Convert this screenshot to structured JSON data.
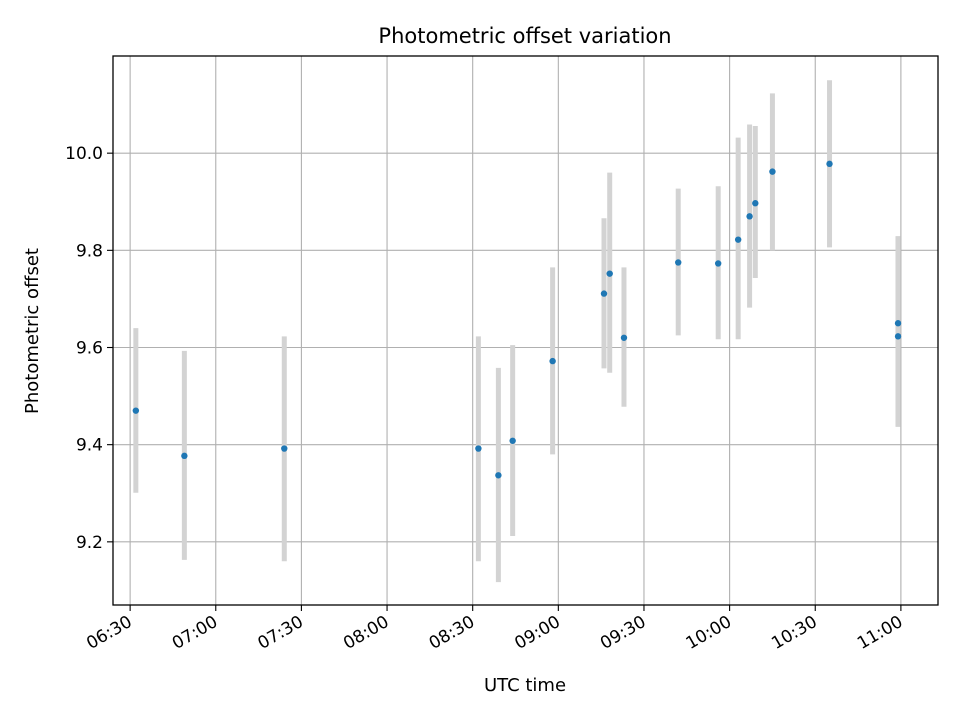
{
  "chart_data": {
    "type": "scatter",
    "title": "Photometric offset variation",
    "xlabel": "UTC time",
    "ylabel": "Photometric offset",
    "x_ticks": [
      "06:30",
      "07:00",
      "07:30",
      "08:00",
      "08:30",
      "09:00",
      "09:30",
      "10:00",
      "10:30",
      "11:00"
    ],
    "y_ticks": [
      "9.2",
      "9.4",
      "9.6",
      "9.8",
      "10.0"
    ],
    "xlim": [
      "06:24",
      "11:13"
    ],
    "ylim": [
      9.07,
      10.2
    ],
    "grid": true,
    "colors": {
      "points": "#1f77b4",
      "errorbars": "#d3d3d3",
      "grid": "#b0b0b0"
    },
    "series": [
      {
        "x": [
          "06:32",
          "06:49",
          "07:24",
          "08:32",
          "08:39",
          "08:44",
          "08:58",
          "09:16",
          "09:18",
          "09:23",
          "09:42",
          "09:56",
          "10:03",
          "10:07",
          "10:09",
          "10:15",
          "10:35",
          "10:59",
          "10:59"
        ],
        "y": [
          9.47,
          9.377,
          9.392,
          9.392,
          9.337,
          9.408,
          9.572,
          9.711,
          9.752,
          9.62,
          9.775,
          9.773,
          9.822,
          9.87,
          9.897,
          9.962,
          9.978,
          9.65,
          9.623
        ],
        "yerr_low": [
          9.301,
          9.163,
          9.16,
          9.16,
          9.117,
          9.212,
          9.38,
          9.557,
          9.548,
          9.478,
          9.625,
          9.617,
          9.617,
          9.682,
          9.743,
          9.8,
          9.806,
          9.437,
          9.437
        ],
        "yerr_high": [
          9.64,
          9.593,
          9.623,
          9.623,
          9.558,
          9.605,
          9.765,
          9.866,
          9.96,
          9.765,
          9.927,
          9.932,
          10.032,
          10.059,
          10.056,
          10.123,
          10.15,
          9.829,
          9.829
        ]
      }
    ]
  }
}
